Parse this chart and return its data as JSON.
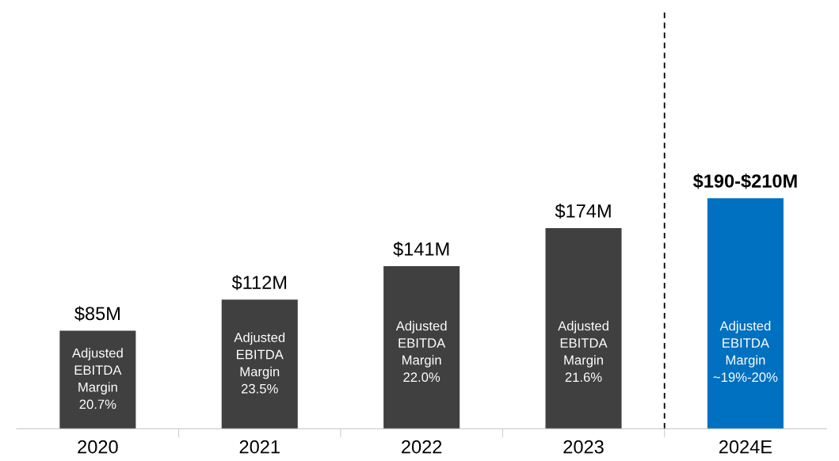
{
  "chart_data": {
    "type": "bar",
    "categories": [
      "2020",
      "2021",
      "2022",
      "2023",
      "2024E"
    ],
    "values": [
      85,
      112,
      141,
      174,
      200
    ],
    "colors": [
      "#404040",
      "#404040",
      "#404040",
      "#404040",
      "#0070c0"
    ],
    "value_labels": [
      "$85M",
      "$112M",
      "$141M",
      "$174M",
      "$190-$210M"
    ],
    "annotations": [
      "Adjusted\nEBITDA\nMargin\n20.7%",
      "Adjusted\nEBITDA\nMargin\n23.5%",
      "Adjusted\nEBITDA\nMargin\n22.0%",
      "Adjusted\nEBITDA\nMargin\n21.6%",
      "Adjusted\nEBITDA\nMargin\n~19%-20%"
    ],
    "grid": false,
    "legend": false
  }
}
